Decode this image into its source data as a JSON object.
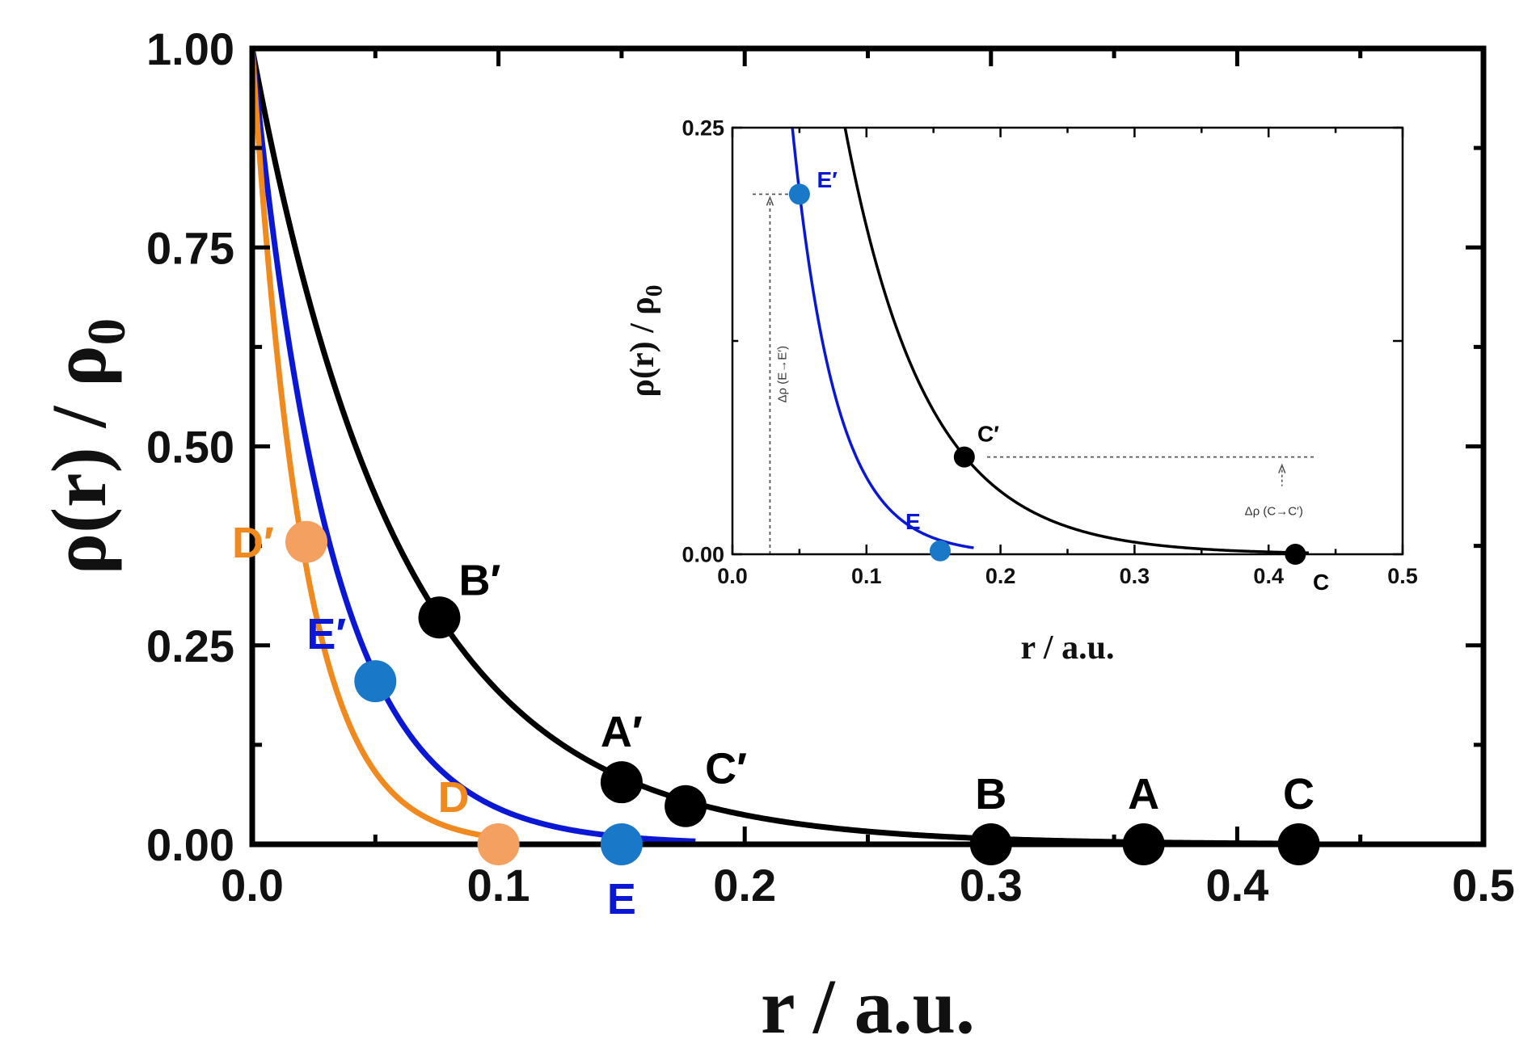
{
  "chart_data": [
    {
      "id": "main",
      "type": "line",
      "xlabel": "r / a.u.",
      "ylabel": "ρ(r) / ρ",
      "ylabel_sub": "0",
      "xlim": [
        0,
        0.5
      ],
      "ylim": [
        0,
        1
      ],
      "xticks": [
        0.0,
        0.1,
        0.2,
        0.3,
        0.4,
        0.5
      ],
      "xtick_labels": [
        "0.0",
        "0.1",
        "0.2",
        "0.3",
        "0.4",
        "0.5"
      ],
      "yticks": [
        0.0,
        0.25,
        0.5,
        0.75,
        1.0
      ],
      "ytick_labels": [
        "0.00",
        "0.25",
        "0.50",
        "0.75",
        "1.00"
      ],
      "series": [
        {
          "name": "black",
          "color": "#000000",
          "decay": 16.5,
          "x_end": 0.43
        },
        {
          "name": "blue",
          "color": "#0a18d6",
          "decay": 31,
          "x_end": 0.18
        },
        {
          "name": "orange",
          "color": "#f08a1e",
          "decay": 48,
          "x_end": 0.1
        }
      ],
      "points": [
        {
          "label": "D′",
          "x": 0.022,
          "y": 0.38,
          "color": "#f4a060",
          "label_color": "#f08a1e",
          "label_pos": "left"
        },
        {
          "label": "D",
          "x": 0.1,
          "y": 0.0,
          "color": "#f4a060",
          "label_color": "#f08a1e",
          "label_pos": "above-left"
        },
        {
          "label": "E′",
          "x": 0.05,
          "y": 0.205,
          "color": "#1a78c8",
          "label_color": "#0a18d6",
          "label_pos": "above-left"
        },
        {
          "label": "E",
          "x": 0.15,
          "y": 0.0,
          "color": "#1a78c8",
          "label_color": "#0a18d6",
          "label_pos": "below"
        },
        {
          "label": "B′",
          "x": 0.076,
          "y": 0.285,
          "color": "#000000",
          "label_color": "#000000",
          "label_pos": "above-right"
        },
        {
          "label": "A′",
          "x": 0.15,
          "y": 0.078,
          "color": "#000000",
          "label_color": "#000000",
          "label_pos": "above"
        },
        {
          "label": "C′",
          "x": 0.176,
          "y": 0.048,
          "color": "#000000",
          "label_color": "#000000",
          "label_pos": "above-right"
        },
        {
          "label": "B",
          "x": 0.3,
          "y": 0.0,
          "color": "#000000",
          "label_color": "#000000",
          "label_pos": "above"
        },
        {
          "label": "A",
          "x": 0.362,
          "y": 0.0,
          "color": "#000000",
          "label_color": "#000000",
          "label_pos": "above"
        },
        {
          "label": "C",
          "x": 0.425,
          "y": 0.0,
          "color": "#000000",
          "label_color": "#000000",
          "label_pos": "above"
        }
      ]
    },
    {
      "id": "inset",
      "type": "line",
      "xlabel": "r / a.u.",
      "ylabel": "ρ(r) / ρ",
      "ylabel_sub": "0",
      "xlim": [
        0,
        0.5
      ],
      "ylim": [
        0,
        0.25
      ],
      "xticks": [
        0.0,
        0.1,
        0.2,
        0.3,
        0.4,
        0.5
      ],
      "xtick_labels": [
        "0.0",
        "0.1",
        "0.2",
        "0.3",
        "0.4",
        "0.5"
      ],
      "yticks": [
        0.0,
        0.25
      ],
      "ytick_labels": [
        "0.00",
        "0.25"
      ],
      "series": [
        {
          "name": "black",
          "color": "#000000",
          "decay": 16.5,
          "x_end": 0.43
        },
        {
          "name": "blue",
          "color": "#0a18d6",
          "decay": 31,
          "x_end": 0.18
        }
      ],
      "points": [
        {
          "label": "E′",
          "x": 0.05,
          "y": 0.211,
          "color": "#1a78c8",
          "label_color": "#0a18d6",
          "label_pos": "right"
        },
        {
          "label": "E",
          "x": 0.155,
          "y": 0.002,
          "color": "#1a78c8",
          "label_color": "#0a18d6",
          "label_pos": "above-left"
        },
        {
          "label": "C′",
          "x": 0.173,
          "y": 0.057,
          "color": "#000000",
          "label_color": "#000000",
          "label_pos": "above-right"
        },
        {
          "label": "C",
          "x": 0.42,
          "y": 0.0,
          "color": "#000000",
          "label_color": "#000000",
          "label_pos": "below-right"
        }
      ],
      "annotations": [
        {
          "text": "Δρ (E→E′)",
          "x": 0.028,
          "y_from": 0.0,
          "y_to": 0.211,
          "orientation": "vertical"
        },
        {
          "text": "Δρ (C→C′)",
          "x": 0.41,
          "y_from": 0.0,
          "y_to": 0.057,
          "orientation": "horizontal"
        }
      ]
    }
  ]
}
